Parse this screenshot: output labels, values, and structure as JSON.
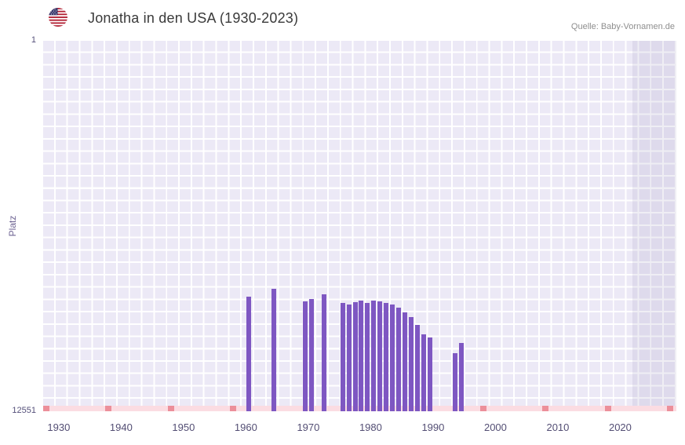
{
  "header": {
    "title": "Jonatha in den USA (1930-2023)",
    "source": "Quelle: Baby-Vornamen.de",
    "flag_icon": "us-flag-icon"
  },
  "chart_data": {
    "type": "bar",
    "title": "Jonatha in den USA (1930-2023)",
    "xlabel": "",
    "ylabel": "Platz",
    "y_axis": {
      "scale": "log",
      "inverted": true,
      "min": 1,
      "max": 12551,
      "top_label": "1",
      "bottom_label": "12551"
    },
    "x_axis": {
      "domain_min": 1927.5,
      "domain_max": 2029,
      "ticks": [
        1930,
        1940,
        1950,
        1960,
        1970,
        1980,
        1990,
        2000,
        2010,
        2020
      ]
    },
    "series": [
      {
        "name": "Platz von Jonatha in den USA",
        "points": [
          {
            "year": 1960,
            "rank": 680
          },
          {
            "year": 1964,
            "rank": 560
          },
          {
            "year": 1969,
            "rank": 760
          },
          {
            "year": 1970,
            "rank": 720
          },
          {
            "year": 1972,
            "rank": 640
          },
          {
            "year": 1975,
            "rank": 795
          },
          {
            "year": 1976,
            "rank": 830
          },
          {
            "year": 1977,
            "rank": 780
          },
          {
            "year": 1978,
            "rank": 750
          },
          {
            "year": 1979,
            "rank": 795
          },
          {
            "year": 1980,
            "rank": 750
          },
          {
            "year": 1981,
            "rank": 765
          },
          {
            "year": 1982,
            "rank": 795
          },
          {
            "year": 1983,
            "rank": 830
          },
          {
            "year": 1984,
            "rank": 900
          },
          {
            "year": 1985,
            "rank": 1010
          },
          {
            "year": 1986,
            "rank": 1140
          },
          {
            "year": 1987,
            "rank": 1390
          },
          {
            "year": 1988,
            "rank": 1770
          },
          {
            "year": 1989,
            "rank": 1920
          },
          {
            "year": 1993,
            "rank": 2860
          },
          {
            "year": 1994,
            "rank": 2210
          }
        ]
      }
    ],
    "highlight_band": {
      "from": 2022,
      "to": 2029
    },
    "unranked_marker_years": [
      1928,
      1938,
      1948,
      1958,
      1998,
      2008,
      2018,
      2028
    ],
    "legend": "none",
    "grid": "on",
    "colors": {
      "bar": "#7e57c2",
      "plot_background": "#ece9f6",
      "grid_line": "#ffffff",
      "recent_band_overlay": "rgba(99,88,150,0.10)",
      "strip_background": "#fbdce2",
      "strip_marker": "#ec8f9a",
      "title_text": "#3a3a3a",
      "source_text": "#8e8e8e",
      "tick_text": "#534e74"
    }
  }
}
